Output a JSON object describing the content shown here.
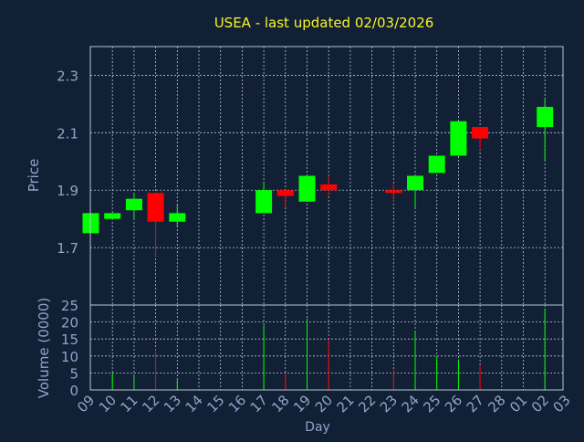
{
  "chart_data": [
    {
      "type": "candlestick",
      "title": "USEA - last updated 02/03/2026",
      "ylabel": "Price",
      "ylim": [
        1.5,
        2.4
      ],
      "yticks": [
        1.7,
        1.9,
        2.1,
        2.3
      ],
      "grid": true,
      "x": [
        "09",
        "10",
        "11",
        "12",
        "13",
        "14",
        "15",
        "16",
        "17",
        "18",
        "19",
        "20",
        "21",
        "22",
        "23",
        "24",
        "25",
        "26",
        "27",
        "28",
        "01",
        "02",
        "03"
      ],
      "candles": [
        {
          "x": "09",
          "open": 1.75,
          "high": 1.82,
          "low": 1.75,
          "close": 1.82
        },
        {
          "x": "10",
          "open": 1.8,
          "high": 1.82,
          "low": 1.8,
          "close": 1.82
        },
        {
          "x": "11",
          "open": 1.83,
          "high": 1.89,
          "low": 1.8,
          "close": 1.87
        },
        {
          "x": "12",
          "open": 1.89,
          "high": 1.89,
          "low": 1.67,
          "close": 1.79
        },
        {
          "x": "13",
          "open": 1.79,
          "high": 1.85,
          "low": 1.77,
          "close": 1.82
        },
        {
          "x": "17",
          "open": 1.82,
          "high": 1.93,
          "low": 1.82,
          "close": 1.9
        },
        {
          "x": "18",
          "open": 1.9,
          "high": 1.9,
          "low": 1.84,
          "close": 1.88
        },
        {
          "x": "19",
          "open": 1.86,
          "high": 1.95,
          "low": 1.86,
          "close": 1.95
        },
        {
          "x": "20",
          "open": 1.92,
          "high": 1.95,
          "low": 1.88,
          "close": 1.9
        },
        {
          "x": "23",
          "open": 1.9,
          "high": 1.92,
          "low": 1.86,
          "close": 1.89
        },
        {
          "x": "24",
          "open": 1.9,
          "high": 1.95,
          "low": 1.84,
          "close": 1.95
        },
        {
          "x": "25",
          "open": 1.96,
          "high": 2.02,
          "low": 1.96,
          "close": 2.02
        },
        {
          "x": "26",
          "open": 2.02,
          "high": 2.14,
          "low": 2.02,
          "close": 2.14
        },
        {
          "x": "27",
          "open": 2.12,
          "high": 2.12,
          "low": 2.04,
          "close": 2.08
        },
        {
          "x": "02",
          "open": 2.12,
          "high": 2.22,
          "low": 2.0,
          "close": 2.19
        }
      ]
    },
    {
      "type": "bar",
      "ylabel": "Volume (0000)",
      "xlabel": "Day",
      "ylim": [
        0,
        25
      ],
      "yticks": [
        0,
        5,
        10,
        15,
        20,
        25
      ],
      "grid": true,
      "x": [
        "09",
        "10",
        "11",
        "12",
        "13",
        "14",
        "15",
        "16",
        "17",
        "18",
        "19",
        "20",
        "21",
        "22",
        "23",
        "24",
        "25",
        "26",
        "27",
        "28",
        "01",
        "02",
        "03"
      ],
      "bars": [
        {
          "x": "10",
          "value": 5,
          "direction": "up"
        },
        {
          "x": "11",
          "value": 4,
          "direction": "up"
        },
        {
          "x": "12",
          "value": 12,
          "direction": "down"
        },
        {
          "x": "13",
          "value": 3,
          "direction": "up"
        },
        {
          "x": "17",
          "value": 19,
          "direction": "up"
        },
        {
          "x": "18",
          "value": 5,
          "direction": "down"
        },
        {
          "x": "19",
          "value": 21,
          "direction": "up"
        },
        {
          "x": "20",
          "value": 15,
          "direction": "down"
        },
        {
          "x": "23",
          "value": 6,
          "direction": "down"
        },
        {
          "x": "24",
          "value": 17,
          "direction": "up"
        },
        {
          "x": "25",
          "value": 10,
          "direction": "up"
        },
        {
          "x": "26",
          "value": 9,
          "direction": "up"
        },
        {
          "x": "27",
          "value": 7,
          "direction": "down"
        },
        {
          "x": "02",
          "value": 24,
          "direction": "up"
        }
      ]
    }
  ],
  "colors": {
    "background": "#112035",
    "title": "#f5f52a",
    "axis_text": "#8fa5c8",
    "grid": "#b7c4d8",
    "up": "#00ff00",
    "down": "#ff0000"
  }
}
